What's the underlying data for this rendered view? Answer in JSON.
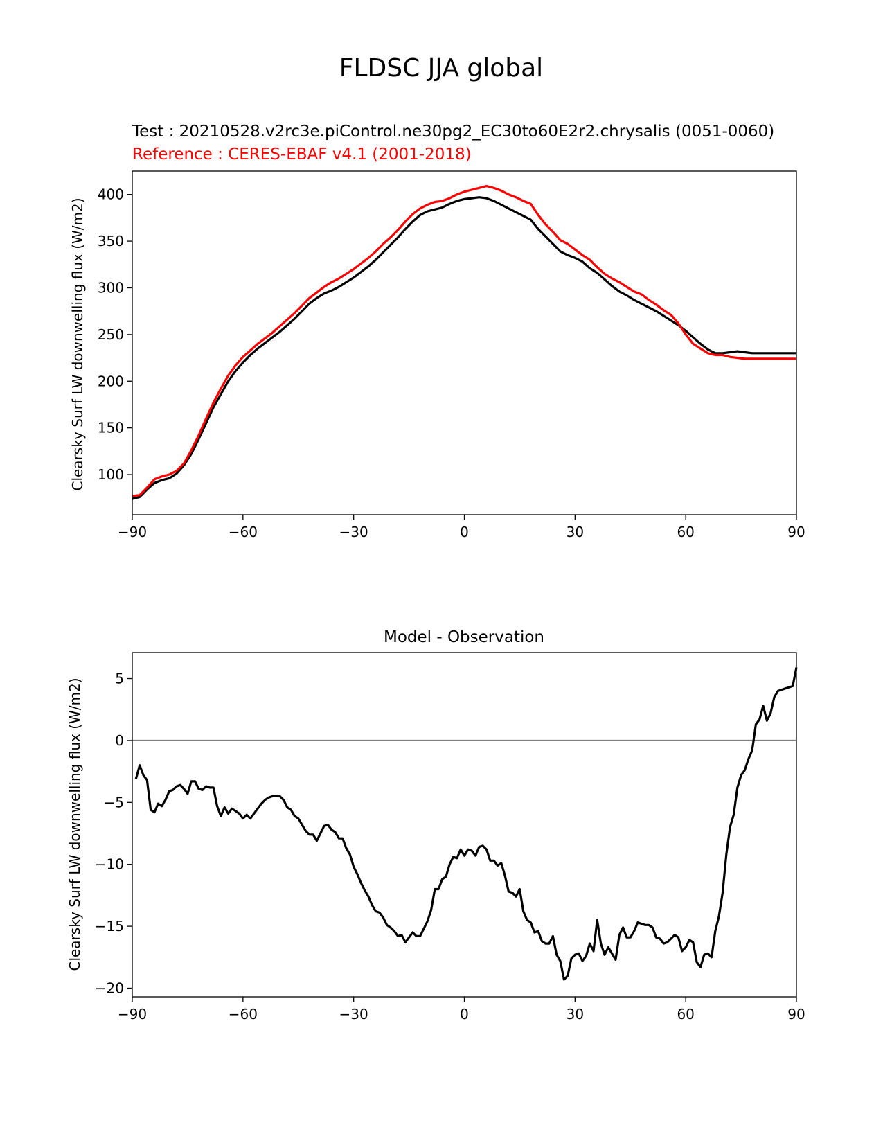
{
  "figure": {
    "title": "FLDSC JJA global"
  },
  "chart_data": [
    {
      "type": "line",
      "title_test": "Test : 20210528.v2rc3e.piControl.ne30pg2_EC30to60E2r2.chrysalis (0051-0060)",
      "title_reference": "Reference : CERES-EBAF v4.1 (2001-2018)",
      "xlabel": "",
      "ylabel": "Clearsky Surf LW downwelling flux (W/m2)",
      "xlim": [
        -90,
        90
      ],
      "ylim": [
        57,
        425
      ],
      "xticks": [
        -90,
        -60,
        -30,
        0,
        30,
        60,
        90
      ],
      "xtick_labels": [
        "−90",
        "−60",
        "−30",
        "0",
        "30",
        "60",
        "90"
      ],
      "yticks": [
        100,
        150,
        200,
        250,
        300,
        350,
        400
      ],
      "ytick_labels": [
        "100",
        "150",
        "200",
        "250",
        "300",
        "350",
        "400"
      ],
      "grid": false,
      "series": [
        {
          "color": "#000000",
          "x": [
            -90,
            -88,
            -86,
            -84,
            -82,
            -80,
            -78,
            -76,
            -74,
            -72,
            -70,
            -68,
            -66,
            -64,
            -62,
            -60,
            -58,
            -56,
            -54,
            -52,
            -50,
            -48,
            -46,
            -44,
            -42,
            -40,
            -38,
            -36,
            -34,
            -32,
            -30,
            -28,
            -26,
            -24,
            -22,
            -20,
            -18,
            -16,
            -14,
            -12,
            -10,
            -8,
            -6,
            -4,
            -2,
            0,
            2,
            4,
            6,
            8,
            10,
            12,
            14,
            16,
            18,
            20,
            22,
            24,
            26,
            28,
            30,
            32,
            34,
            36,
            38,
            40,
            42,
            44,
            46,
            48,
            50,
            52,
            54,
            56,
            58,
            60,
            62,
            64,
            66,
            68,
            70,
            72,
            74,
            76,
            78,
            80,
            82,
            84,
            86,
            88,
            90
          ],
          "y": [
            74,
            76,
            84,
            91,
            94,
            96,
            101,
            110,
            122,
            138,
            155,
            172,
            186,
            200,
            211,
            220,
            228,
            235,
            241,
            247,
            253,
            260,
            267,
            275,
            283,
            289,
            294,
            297,
            301,
            306,
            311,
            317,
            323,
            330,
            338,
            346,
            354,
            363,
            371,
            378,
            382,
            384,
            386,
            390,
            393,
            395,
            396,
            397,
            396,
            393,
            389,
            385,
            381,
            377,
            373,
            363,
            355,
            347,
            339,
            335,
            332,
            328,
            321,
            316,
            309,
            302,
            296,
            292,
            287,
            283,
            279,
            275,
            270,
            265,
            260,
            254,
            247,
            240,
            234,
            230,
            230,
            231,
            232,
            231,
            230,
            230,
            230,
            230,
            230,
            230,
            230
          ]
        },
        {
          "color": "#ff0000",
          "x": [
            -90,
            -88,
            -86,
            -84,
            -82,
            -80,
            -78,
            -76,
            -74,
            -72,
            -70,
            -68,
            -66,
            -64,
            -62,
            -60,
            -58,
            -56,
            -54,
            -52,
            -50,
            -48,
            -46,
            -44,
            -42,
            -40,
            -38,
            -36,
            -34,
            -32,
            -30,
            -28,
            -26,
            -24,
            -22,
            -20,
            -18,
            -16,
            -14,
            -12,
            -10,
            -8,
            -6,
            -4,
            -2,
            0,
            2,
            4,
            6,
            8,
            10,
            12,
            14,
            16,
            18,
            20,
            22,
            24,
            26,
            28,
            30,
            32,
            34,
            36,
            38,
            40,
            42,
            44,
            46,
            48,
            50,
            52,
            54,
            56,
            58,
            60,
            62,
            64,
            66,
            68,
            70,
            72,
            74,
            76,
            78,
            80,
            82,
            84,
            86,
            88,
            90
          ],
          "y": [
            77,
            78,
            86,
            95,
            98,
            100,
            104,
            112,
            126,
            142,
            160,
            177,
            192,
            206,
            217,
            226,
            233,
            240,
            246,
            252,
            259,
            266,
            273,
            281,
            289,
            295,
            301,
            306,
            310,
            315,
            320,
            326,
            332,
            339,
            347,
            354,
            362,
            371,
            379,
            385,
            389,
            392,
            393,
            396,
            400,
            403,
            405,
            407,
            409,
            407,
            404,
            400,
            397,
            393,
            390,
            378,
            368,
            360,
            351,
            347,
            341,
            335,
            330,
            322,
            315,
            310,
            306,
            301,
            296,
            293,
            287,
            282,
            276,
            271,
            262,
            250,
            240,
            235,
            230,
            228,
            228,
            226,
            225,
            224,
            224,
            224,
            224,
            224,
            224,
            224,
            224
          ]
        }
      ]
    },
    {
      "type": "line",
      "title": "Model - Observation",
      "xlabel": "",
      "ylabel": "Clearsky Surf LW downwelling flux (W/m2)",
      "xlim": [
        -90,
        90
      ],
      "ylim": [
        -20.7,
        7.1
      ],
      "xticks": [
        -90,
        -60,
        -30,
        0,
        30,
        60,
        90
      ],
      "xtick_labels": [
        "−90",
        "−60",
        "−30",
        "0",
        "30",
        "60",
        "90"
      ],
      "yticks": [
        -20,
        -15,
        -10,
        -5,
        0,
        5
      ],
      "ytick_labels": [
        "−20",
        "−15",
        "−10",
        "−5",
        "0",
        "5"
      ],
      "hline": {
        "y": 0,
        "color": "#808080"
      },
      "grid": false,
      "series": [
        {
          "color": "#000000",
          "x": [
            -89,
            -88,
            -87,
            -86,
            -85,
            -84,
            -83,
            -82,
            -81,
            -80,
            -79,
            -78,
            -77,
            -76,
            -75,
            -74,
            -73,
            -72,
            -71,
            -70,
            -69,
            -68,
            -67,
            -66,
            -65,
            -64,
            -63,
            -62,
            -61,
            -60,
            -59,
            -58,
            -57,
            -56,
            -55,
            -54,
            -53,
            -52,
            -51,
            -50,
            -49,
            -48,
            -47,
            -46,
            -45,
            -44,
            -43,
            -42,
            -41,
            -40,
            -39,
            -38,
            -37,
            -36,
            -35,
            -34,
            -33,
            -32,
            -31,
            -30,
            -29,
            -28,
            -27,
            -26,
            -25,
            -24,
            -23,
            -22,
            -21,
            -20,
            -19,
            -18,
            -17,
            -16,
            -15,
            -14,
            -13,
            -12,
            -11,
            -10,
            -9,
            -8,
            -7,
            -6,
            -5,
            -4,
            -3,
            -2,
            -1,
            0,
            1,
            2,
            3,
            4,
            5,
            6,
            7,
            8,
            9,
            10,
            11,
            12,
            13,
            14,
            15,
            16,
            17,
            18,
            19,
            20,
            21,
            22,
            23,
            24,
            25,
            26,
            27,
            28,
            29,
            30,
            31,
            32,
            33,
            34,
            35,
            36,
            37,
            38,
            39,
            40,
            41,
            42,
            43,
            44,
            45,
            46,
            47,
            48,
            49,
            50,
            51,
            52,
            53,
            54,
            55,
            56,
            57,
            58,
            59,
            60,
            61,
            62,
            63,
            64,
            65,
            66,
            67,
            68,
            69,
            70,
            71,
            72,
            73,
            74,
            75,
            76,
            77,
            78,
            79,
            80,
            81,
            82,
            83,
            84,
            85,
            86,
            87,
            88,
            89,
            90
          ],
          "y": [
            -3.1,
            -2.0,
            -2.8,
            -3.2,
            -5.6,
            -5.8,
            -5.1,
            -5.3,
            -4.8,
            -4.1,
            -4.0,
            -3.7,
            -3.6,
            -3.9,
            -4.3,
            -3.3,
            -3.3,
            -3.9,
            -4.0,
            -3.7,
            -3.8,
            -3.8,
            -5.3,
            -6.1,
            -5.4,
            -5.9,
            -5.5,
            -5.7,
            -5.9,
            -6.3,
            -6.0,
            -6.3,
            -5.9,
            -5.5,
            -5.1,
            -4.8,
            -4.6,
            -4.5,
            -4.5,
            -4.5,
            -4.8,
            -5.4,
            -5.6,
            -6.1,
            -6.3,
            -6.8,
            -7.3,
            -7.6,
            -7.6,
            -8.1,
            -7.5,
            -6.9,
            -6.8,
            -7.2,
            -7.4,
            -7.9,
            -7.9,
            -8.7,
            -9.2,
            -10.2,
            -10.8,
            -11.5,
            -12.1,
            -12.6,
            -13.3,
            -13.8,
            -13.9,
            -14.3,
            -14.9,
            -15.1,
            -15.4,
            -15.8,
            -15.7,
            -16.3,
            -15.9,
            -15.5,
            -15.8,
            -15.8,
            -15.2,
            -14.6,
            -13.7,
            -12.0,
            -12.0,
            -11.2,
            -11.0,
            -10.0,
            -9.4,
            -9.5,
            -8.8,
            -9.3,
            -8.8,
            -8.9,
            -9.3,
            -8.6,
            -8.5,
            -8.8,
            -9.7,
            -9.7,
            -10.1,
            -9.9,
            -10.9,
            -12.2,
            -12.3,
            -12.6,
            -12.0,
            -13.8,
            -14.5,
            -14.7,
            -15.5,
            -15.4,
            -16.2,
            -16.4,
            -16.4,
            -15.8,
            -17.3,
            -17.8,
            -19.3,
            -19.0,
            -17.6,
            -17.3,
            -17.2,
            -17.8,
            -17.4,
            -16.4,
            -17.0,
            -14.5,
            -16.4,
            -17.3,
            -16.7,
            -17.2,
            -17.7,
            -15.7,
            -15.1,
            -15.9,
            -15.9,
            -15.4,
            -14.7,
            -14.8,
            -14.9,
            -14.9,
            -15.1,
            -15.9,
            -16.0,
            -16.4,
            -16.3,
            -16.0,
            -15.7,
            -15.9,
            -17.0,
            -16.7,
            -16.1,
            -16.3,
            -17.9,
            -18.3,
            -17.3,
            -17.2,
            -17.5,
            -15.4,
            -14.2,
            -12.3,
            -9.2,
            -7.0,
            -6.0,
            -3.8,
            -2.8,
            -2.4,
            -1.5,
            -0.8,
            1.3,
            1.7,
            2.8,
            1.6,
            2.2,
            3.5,
            4.0,
            4.1,
            4.2,
            4.3,
            4.4,
            5.9
          ]
        }
      ]
    }
  ]
}
